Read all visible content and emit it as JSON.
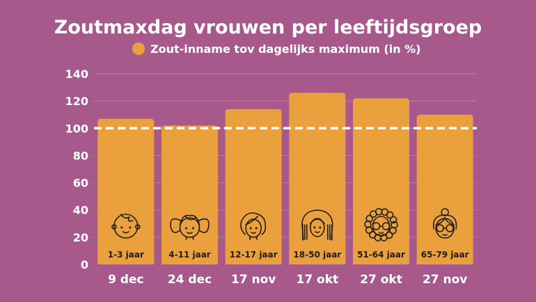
{
  "colors": {
    "background": "#a8598c",
    "bar": "#eba03e",
    "text": "#ffffff",
    "bar_text": "#1e1e1e",
    "grid": "#c27ba6",
    "reference_line": "#ffffff"
  },
  "chart_data": {
    "type": "bar",
    "title": "Zoutmaxdag vrouwen per leeftijdsgroep",
    "categories": [
      "9 dec",
      "24 dec",
      "17 nov",
      "17 okt",
      "27 okt",
      "27 nov"
    ],
    "age_groups": [
      "1-3 jaar",
      "4-11 jaar",
      "12-17 jaar",
      "18-50 jaar",
      "51-64 jaar",
      "65-79 jaar"
    ],
    "icons": [
      "baby-icon",
      "girl-pigtails-icon",
      "teen-girl-icon",
      "woman-long-hair-icon",
      "curly-hair-glasses-icon",
      "elderly-woman-glasses-icon"
    ],
    "series": [
      {
        "name": "Zout-inname tov dagelijks maximum (in %)",
        "values": [
          107,
          102,
          114,
          126,
          122,
          110
        ]
      }
    ],
    "ylim": [
      0,
      140
    ],
    "yticks": [
      0,
      20,
      40,
      60,
      80,
      100,
      120,
      140
    ],
    "reference_line": 100,
    "legend_position": "top",
    "grid": true,
    "xlabel": "",
    "ylabel": ""
  }
}
